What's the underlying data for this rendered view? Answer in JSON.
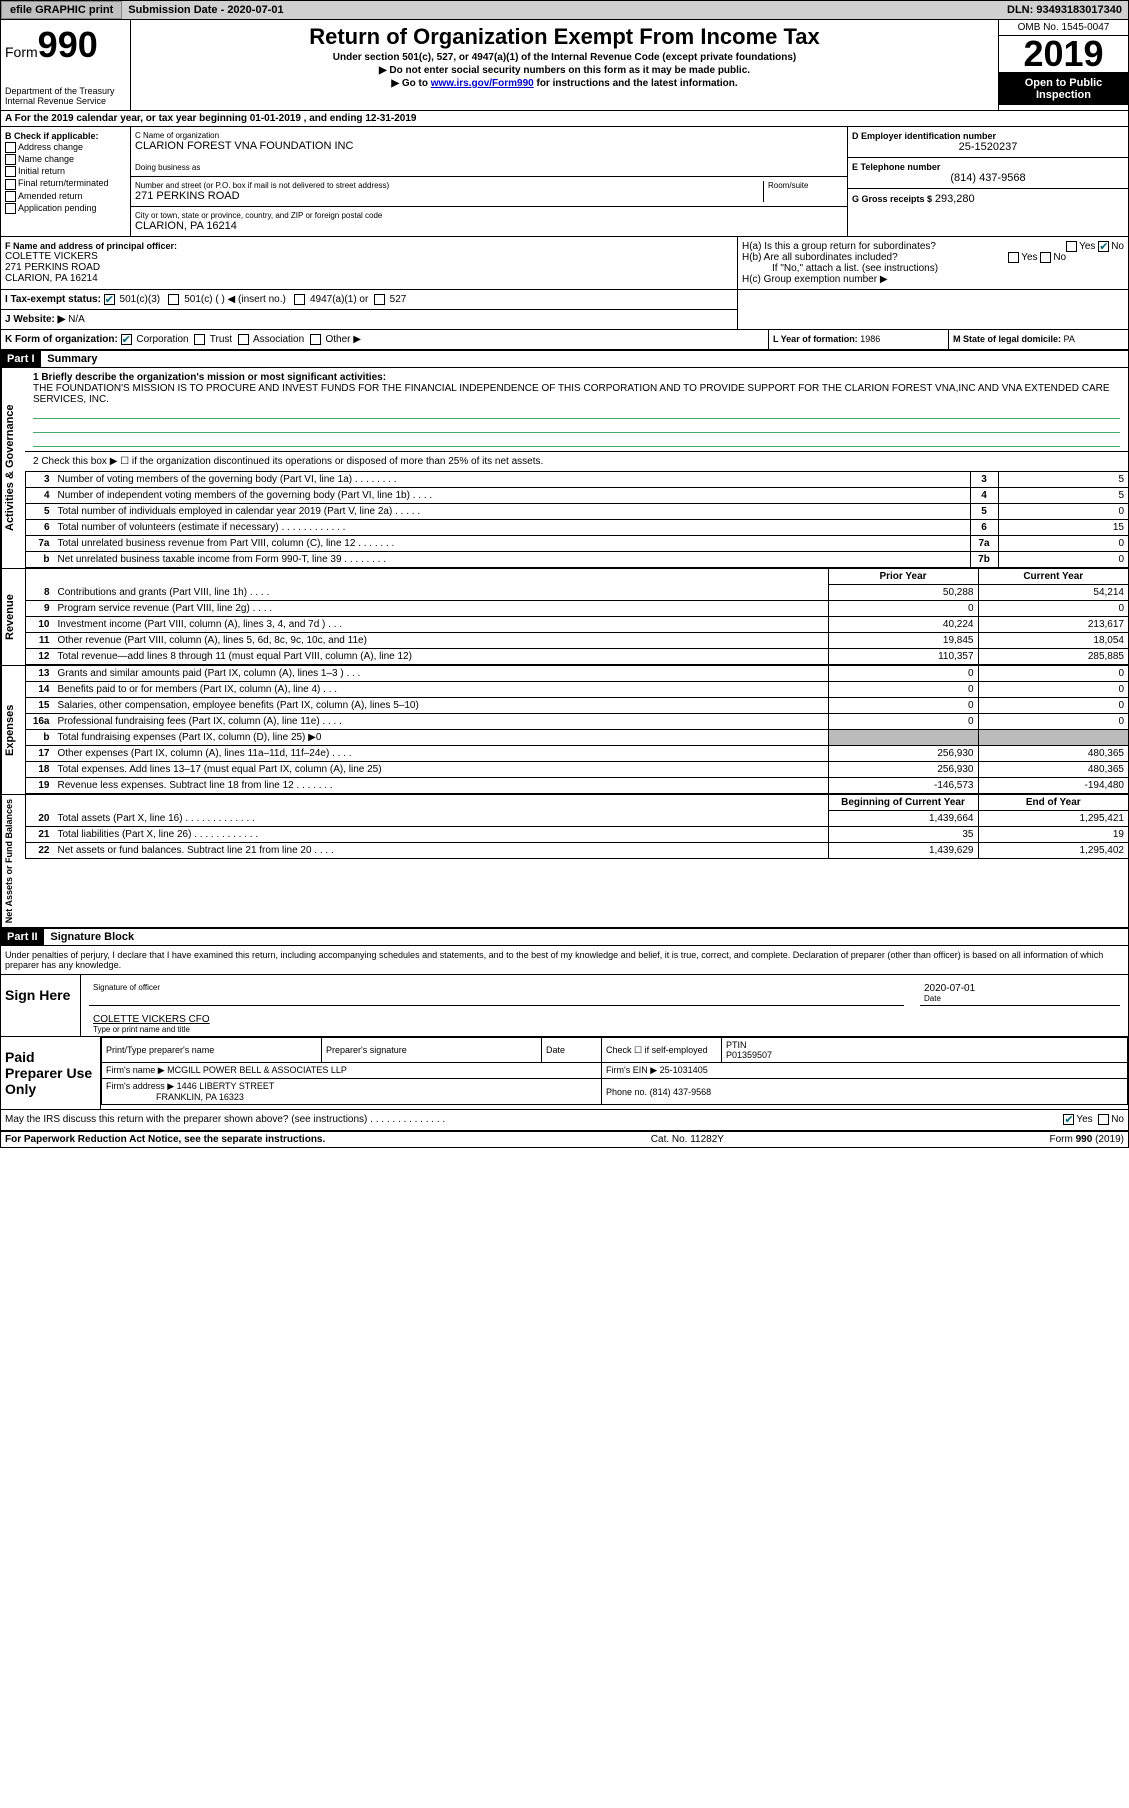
{
  "topbar": {
    "efile": "efile GRAPHIC print",
    "submission_label": "Submission Date - 2020-07-01",
    "dln": "DLN: 93493183017340"
  },
  "header": {
    "form_prefix": "Form",
    "form_number": "990",
    "dept": "Department of the Treasury",
    "irs": "Internal Revenue Service",
    "title": "Return of Organization Exempt From Income Tax",
    "subtitle": "Under section 501(c), 527, or 4947(a)(1) of the Internal Revenue Code (except private foundations)",
    "note1": "▶ Do not enter social security numbers on this form as it may be made public.",
    "note2_pre": "▶ Go to ",
    "note2_link": "www.irs.gov/Form990",
    "note2_post": " for instructions and the latest information.",
    "omb": "OMB No. 1545-0047",
    "year": "2019",
    "open": "Open to Public Inspection"
  },
  "section_a": "A For the 2019 calendar year, or tax year beginning 01-01-2019   , and ending 12-31-2019",
  "col_b": {
    "label": "B Check if applicable:",
    "items": [
      "Address change",
      "Name change",
      "Initial return",
      "Final return/terminated",
      "Amended return",
      "Application pending"
    ]
  },
  "col_c": {
    "name_lbl": "C Name of organization",
    "name": "CLARION FOREST VNA FOUNDATION INC",
    "dba_lbl": "Doing business as",
    "dba": "",
    "addr_lbl": "Number and street (or P.O. box if mail is not delivered to street address)",
    "room_lbl": "Room/suite",
    "addr": "271 PERKINS ROAD",
    "city_lbl": "City or town, state or province, country, and ZIP or foreign postal code",
    "city": "CLARION, PA  16214"
  },
  "col_d": {
    "lbl": "D Employer identification number",
    "val": "25-1520237"
  },
  "col_e": {
    "lbl": "E Telephone number",
    "val": "(814) 437-9568"
  },
  "col_g": {
    "lbl": "G Gross receipts $",
    "val": "293,280"
  },
  "col_f": {
    "lbl": "F  Name and address of principal officer:",
    "name": "COLETTE VICKERS",
    "addr1": "271 PERKINS ROAD",
    "addr2": "CLARION, PA  16214"
  },
  "col_h": {
    "ha": "H(a)  Is this a group return for subordinates?",
    "hb": "H(b)  Are all subordinates included?",
    "hb_note": "If \"No,\" attach a list. (see instructions)",
    "hc": "H(c)  Group exemption number ▶"
  },
  "tax_status": {
    "lbl": "I  Tax-exempt status:",
    "opt1": "501(c)(3)",
    "opt2": "501(c) (   ) ◀ (insert no.)",
    "opt3": "4947(a)(1) or",
    "opt4": "527"
  },
  "website": {
    "lbl": "J  Website: ▶",
    "val": "N/A"
  },
  "k_form": {
    "lbl": "K Form of organization:",
    "opts": [
      "Corporation",
      "Trust",
      "Association",
      "Other ▶"
    ]
  },
  "col_l": {
    "lbl": "L Year of formation:",
    "val": "1986"
  },
  "col_m": {
    "lbl": "M State of legal domicile:",
    "val": "PA"
  },
  "part1": {
    "header": "Part I",
    "title": "Summary",
    "q1": "1  Briefly describe the organization's mission or most significant activities:",
    "mission": "THE FOUNDATION'S MISSION IS TO PROCURE AND INVEST FUNDS FOR THE FINANCIAL INDEPENDENCE OF THIS CORPORATION AND TO PROVIDE SUPPORT FOR THE CLARION FOREST VNA,INC AND VNA EXTENDED CARE SERVICES, INC.",
    "q2": "2    Check this box ▶ ☐ if the organization discontinued its operations or disposed of more than 25% of its net assets.",
    "side_ag": "Activities & Governance",
    "side_rev": "Revenue",
    "side_exp": "Expenses",
    "side_na": "Net Assets or Fund Balances",
    "rows_ag": [
      {
        "n": "3",
        "t": "Number of voting members of the governing body (Part VI, line 1a)   .    .    .    .    .    .    .    .",
        "box": "3",
        "v": "5"
      },
      {
        "n": "4",
        "t": "Number of independent voting members of the governing body (Part VI, line 1b)   .    .    .    .",
        "box": "4",
        "v": "5"
      },
      {
        "n": "5",
        "t": "Total number of individuals employed in calendar year 2019 (Part V, line 2a)   .    .    .    .    .",
        "box": "5",
        "v": "0"
      },
      {
        "n": "6",
        "t": "Total number of volunteers (estimate if necessary)    .    .    .    .    .    .    .    .    .    .    .    .",
        "box": "6",
        "v": "15"
      },
      {
        "n": "7a",
        "t": "Total unrelated business revenue from Part VIII, column (C), line 12   .    .    .    .    .    .    .",
        "box": "7a",
        "v": "0"
      },
      {
        "n": "b",
        "t": "Net unrelated business taxable income from Form 990-T, line 39   .    .    .    .    .    .    .    .",
        "box": "7b",
        "v": "0"
      }
    ],
    "prior_hdr": "Prior Year",
    "curr_hdr": "Current Year",
    "rows_rev": [
      {
        "n": "8",
        "t": "Contributions and grants (Part VIII, line 1h)    .    .    .    .",
        "p": "50,288",
        "c": "54,214"
      },
      {
        "n": "9",
        "t": "Program service revenue (Part VIII, line 2g)    .    .    .    .",
        "p": "0",
        "c": "0"
      },
      {
        "n": "10",
        "t": "Investment income (Part VIII, column (A), lines 3, 4, and 7d )    .    .    .",
        "p": "40,224",
        "c": "213,617"
      },
      {
        "n": "11",
        "t": "Other revenue (Part VIII, column (A), lines 5, 6d, 8c, 9c, 10c, and 11e)",
        "p": "19,845",
        "c": "18,054"
      },
      {
        "n": "12",
        "t": "Total revenue—add lines 8 through 11 (must equal Part VIII, column (A), line 12)",
        "p": "110,357",
        "c": "285,885"
      }
    ],
    "rows_exp": [
      {
        "n": "13",
        "t": "Grants and similar amounts paid (Part IX, column (A), lines 1–3 )   .    .    .",
        "p": "0",
        "c": "0"
      },
      {
        "n": "14",
        "t": "Benefits paid to or for members (Part IX, column (A), line 4)    .    .    .",
        "p": "0",
        "c": "0"
      },
      {
        "n": "15",
        "t": "Salaries, other compensation, employee benefits (Part IX, column (A), lines 5–10)",
        "p": "0",
        "c": "0"
      },
      {
        "n": "16a",
        "t": "Professional fundraising fees (Part IX, column (A), line 11e)   .    .    .    .",
        "p": "0",
        "c": "0"
      },
      {
        "n": "b",
        "t": "Total fundraising expenses (Part IX, column (D), line 25)  ▶0",
        "p": "",
        "c": "",
        "shade": true
      },
      {
        "n": "17",
        "t": "Other expenses (Part IX, column (A), lines 11a–11d, 11f–24e)   .    .    .    .",
        "p": "256,930",
        "c": "480,365"
      },
      {
        "n": "18",
        "t": "Total expenses. Add lines 13–17 (must equal Part IX, column (A), line 25)",
        "p": "256,930",
        "c": "480,365"
      },
      {
        "n": "19",
        "t": "Revenue less expenses. Subtract line 18 from line 12  .    .    .    .    .    .    .",
        "p": "-146,573",
        "c": "-194,480"
      }
    ],
    "boy_hdr": "Beginning of Current Year",
    "eoy_hdr": "End of Year",
    "rows_na": [
      {
        "n": "20",
        "t": "Total assets (Part X, line 16)  .    .    .    .    .    .    .    .    .    .    .    .    .",
        "p": "1,439,664",
        "c": "1,295,421"
      },
      {
        "n": "21",
        "t": "Total liabilities (Part X, line 26)  .    .    .    .    .    .    .    .    .    .    .    .",
        "p": "35",
        "c": "19"
      },
      {
        "n": "22",
        "t": "Net assets or fund balances. Subtract line 21 from line 20    .    .    .    .",
        "p": "1,439,629",
        "c": "1,295,402"
      }
    ]
  },
  "part2": {
    "header": "Part II",
    "title": "Signature Block",
    "decl": "Under penalties of perjury, I declare that I have examined this return, including accompanying schedules and statements, and to the best of my knowledge and belief, it is true, correct, and complete. Declaration of preparer (other than officer) is based on all information of which preparer has any knowledge.",
    "sign_here": "Sign Here",
    "sig_officer": "Signature of officer",
    "sig_date": "2020-07-01",
    "date_lbl": "Date",
    "officer_name": "COLETTE VICKERS CFO",
    "type_name_lbl": "Type or print name and title",
    "paid_prep": "Paid Preparer Use Only",
    "prep_name_lbl": "Print/Type preparer's name",
    "prep_sig_lbl": "Preparer's signature",
    "prep_date_lbl": "Date",
    "check_self": "Check ☐ if self-employed",
    "ptin_lbl": "PTIN",
    "ptin": "P01359507",
    "firm_name_lbl": "Firm's name    ▶",
    "firm_name": "MCGILL POWER BELL & ASSOCIATES LLP",
    "firm_ein_lbl": "Firm's EIN ▶",
    "firm_ein": "25-1031405",
    "firm_addr_lbl": "Firm's address ▶",
    "firm_addr1": "1446 LIBERTY STREET",
    "firm_addr2": "FRANKLIN, PA  16323",
    "phone_lbl": "Phone no.",
    "phone": "(814) 437-9568",
    "discuss": "May the IRS discuss this return with the preparer shown above? (see instructions)   .    .    .    .    .    .    .    .    .    .    .    .    .    .",
    "yes": "Yes",
    "no": "No"
  },
  "footer": {
    "left": "For Paperwork Reduction Act Notice, see the separate instructions.",
    "mid": "Cat. No. 11282Y",
    "right": "Form 990 (2019)"
  }
}
